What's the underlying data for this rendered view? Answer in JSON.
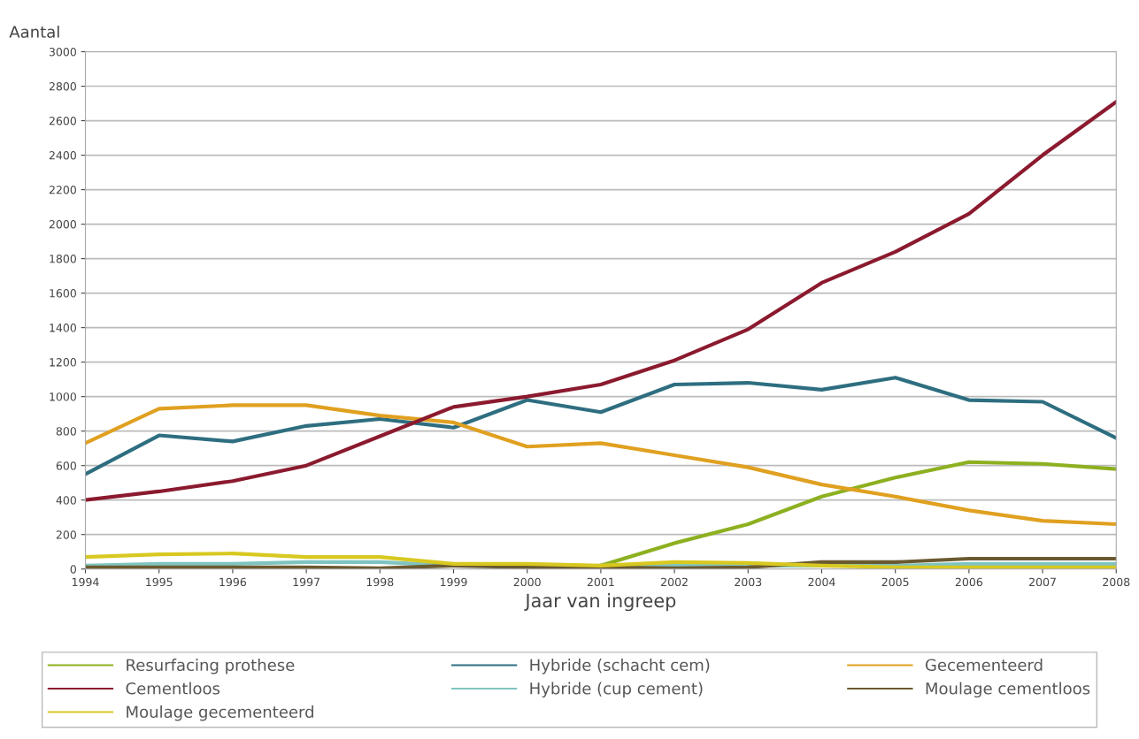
{
  "chart_data": {
    "type": "line",
    "xlabel": "Jaar van ingreep",
    "ylabel": "Aantal",
    "x": [
      1994,
      1995,
      1996,
      1997,
      1998,
      1999,
      2000,
      2001,
      2002,
      2003,
      2004,
      2005,
      2006,
      2007,
      2008
    ],
    "xlim": [
      1994,
      2008
    ],
    "xticks": [
      1994,
      1995,
      1996,
      1997,
      1998,
      1999,
      2000,
      2001,
      2002,
      2003,
      2004,
      2005,
      2006,
      2007,
      2008
    ],
    "ylim": [
      0,
      3000
    ],
    "yticks": [
      0,
      200,
      400,
      600,
      800,
      1000,
      1200,
      1400,
      1600,
      1800,
      2000,
      2200,
      2400,
      2600,
      2800,
      3000
    ],
    "grid": "y",
    "legend": "bottom",
    "marker": "none",
    "line_style": "solid",
    "series": [
      {
        "name": "Resurfacing prothese",
        "color": "#8db020",
        "values": [
          null,
          null,
          null,
          null,
          null,
          null,
          null,
          20,
          150,
          260,
          420,
          530,
          620,
          610,
          580
        ]
      },
      {
        "name": "Hybride (schacht cem)",
        "color": "#2e6e80",
        "values": [
          550,
          775,
          740,
          830,
          870,
          820,
          980,
          910,
          1070,
          1080,
          1040,
          1110,
          980,
          970,
          760
        ]
      },
      {
        "name": "Gecementeerd",
        "color": "#e0a020",
        "values": [
          730,
          930,
          950,
          950,
          890,
          850,
          710,
          730,
          660,
          590,
          490,
          420,
          340,
          280,
          260
        ]
      },
      {
        "name": "Cementloos",
        "color": "#8b1a2e",
        "values": [
          400,
          450,
          510,
          600,
          770,
          940,
          1000,
          1070,
          1210,
          1390,
          1660,
          1840,
          2060,
          2400,
          2710
        ]
      },
      {
        "name": "Hybride (cup cement)",
        "color": "#7fc4c0",
        "values": [
          20,
          30,
          30,
          40,
          40,
          20,
          null,
          20,
          20,
          20,
          20,
          20,
          30,
          30,
          30
        ]
      },
      {
        "name": "Moulage cementloos",
        "color": "#6b5a30",
        "values": [
          10,
          10,
          10,
          10,
          5,
          20,
          10,
          10,
          5,
          10,
          40,
          40,
          60,
          60,
          60
        ]
      },
      {
        "name": "Moulage gecementeerd",
        "color": "#d8c820",
        "values": [
          70,
          85,
          90,
          70,
          70,
          30,
          30,
          20,
          40,
          35,
          20,
          10,
          10,
          10,
          10
        ]
      }
    ]
  }
}
